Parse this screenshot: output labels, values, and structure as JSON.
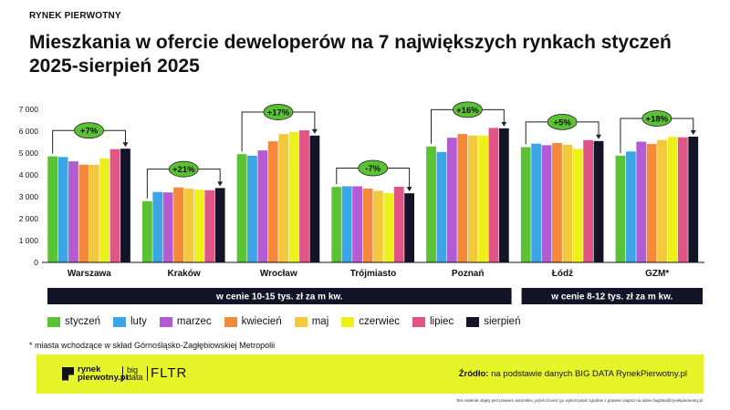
{
  "header": {
    "kicker": "RYNEK PIERWOTNY",
    "title": "Mieszkania w ofercie deweloperów na 7 największych rynkach styczeń 2025-sierpień 2025"
  },
  "chart_data": {
    "type": "bar",
    "categories": [
      "Warszawa",
      "Kraków",
      "Wrocław",
      "Trójmiasto",
      "Poznań",
      "Łódź",
      "GZM*"
    ],
    "y_ticks": [
      "0",
      "1 000",
      "2 000",
      "3 000",
      "4 000",
      "5 000",
      "6 000",
      "7 000"
    ],
    "ylim": [
      0,
      7000
    ],
    "series": [
      {
        "name": "styczeń",
        "color": "#5bc236",
        "values": [
          4850,
          2800,
          4950,
          3450,
          5300,
          5270,
          4880
        ]
      },
      {
        "name": "luty",
        "color": "#3aa6e8",
        "values": [
          4820,
          3220,
          4880,
          3480,
          5050,
          5430,
          5070
        ]
      },
      {
        "name": "marzec",
        "color": "#b35bd2",
        "values": [
          4620,
          3200,
          5120,
          3480,
          5700,
          5360,
          5520
        ]
      },
      {
        "name": "kwiecień",
        "color": "#f5893a",
        "values": [
          4470,
          3430,
          5540,
          3380,
          5870,
          5460,
          5420
        ]
      },
      {
        "name": "maj",
        "color": "#f4c83c",
        "values": [
          4460,
          3370,
          5870,
          3270,
          5800,
          5380,
          5600
        ]
      },
      {
        "name": "czerwiec",
        "color": "#eef01c",
        "values": [
          4760,
          3320,
          5960,
          3170,
          5800,
          5190,
          5740
        ]
      },
      {
        "name": "lipiec",
        "color": "#e05585",
        "values": [
          5180,
          3300,
          6040,
          3460,
          6150,
          5590,
          5720
        ]
      },
      {
        "name": "sierpień",
        "color": "#141428",
        "values": [
          5200,
          3400,
          5800,
          3160,
          6130,
          5550,
          5750
        ]
      }
    ],
    "changes": [
      "+7%",
      "+21%",
      "+17%",
      "-7%",
      "+16%",
      "+5%",
      "+18%"
    ],
    "price_bands": [
      {
        "label": "w cenie 10-15 tys. zł za m kw."
      },
      {
        "label": "w cenie 8-12 tys. zł za m kw."
      }
    ],
    "legend_position": "bottom",
    "grid": false
  },
  "footnote": "* miasta wchodzące w skład Górnośląsko-Zagłębiowskiej Metropolii",
  "footer": {
    "logo_main": "rynek pierwotny.pl",
    "logo_big": "big data",
    "logo_fltr": "FLTR",
    "source_label": "Źródło:",
    "source_text": " na podstawie danych BIG DATA RynekPierwotny.pl",
    "disclaimer": "Ten materiał objęty jest prawem autorskim, jeżeli chcesz go wykorzystać zgodnie z prawem napisz na adres bigdata@rynekpierwotny.pl"
  }
}
